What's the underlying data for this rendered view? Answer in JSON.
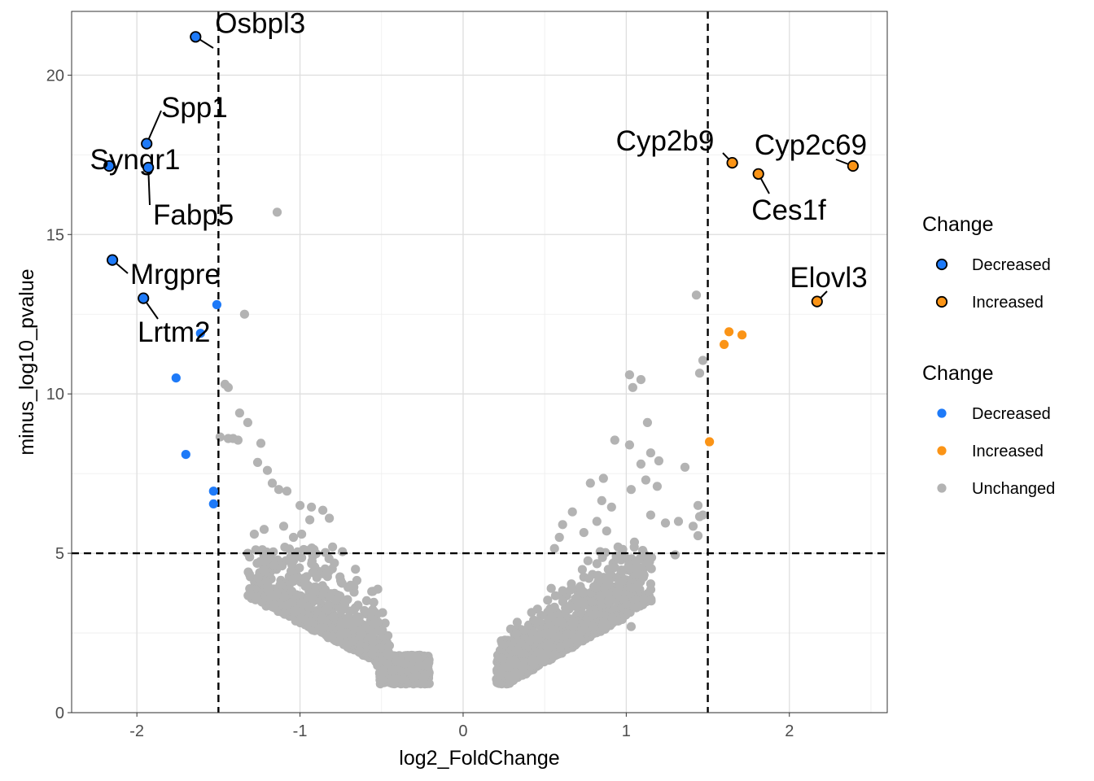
{
  "chart_data": {
    "type": "scatter",
    "title": "",
    "xlabel": "log2_FoldChange",
    "ylabel": "minus_log10_pvalue",
    "xlim": [
      -2.4,
      2.6
    ],
    "ylim": [
      0,
      22
    ],
    "x_ticks": [
      -2,
      -1,
      0,
      1,
      2
    ],
    "x_tick_labels": [
      "-2",
      "-1",
      "0",
      "1",
      "2"
    ],
    "y_ticks": [
      0,
      5,
      10,
      15,
      20
    ],
    "y_tick_labels": [
      "0",
      "5",
      "10",
      "15",
      "20"
    ],
    "grid": true,
    "thresholds": {
      "x": [
        -1.5,
        1.5
      ],
      "y": 5
    },
    "colors": {
      "Decreased": "#1e7af8",
      "Increased": "#fb9416",
      "Unchanged": "#b3b3b3"
    },
    "legend_placement": "right",
    "legends": [
      {
        "title": "Change",
        "style": "outlined",
        "entries": [
          "Decreased",
          "Increased"
        ]
      },
      {
        "title": "Change",
        "style": "filled",
        "entries": [
          "Decreased",
          "Increased",
          "Unchanged"
        ]
      }
    ],
    "series": [
      {
        "name": "Decreased",
        "x": [
          -1.51,
          -1.61,
          -1.76,
          -1.7,
          -1.53,
          -1.53
        ],
        "y": [
          12.8,
          11.9,
          10.5,
          8.1,
          6.95,
          6.55
        ]
      },
      {
        "name": "Increased",
        "x": [
          1.63,
          1.71,
          1.6,
          1.51
        ],
        "y": [
          11.95,
          11.85,
          11.55,
          8.5
        ]
      },
      {
        "name": "Unchanged",
        "x": [
          -1.14,
          -1.34,
          -1.46,
          -1.44,
          -1.37,
          -1.32,
          -1.49,
          -1.38,
          -1.24,
          -1.44,
          -1.41,
          -1.26,
          -1.2,
          -1.17,
          -1.13,
          -1.08,
          -1.0,
          -0.93,
          -0.86,
          -0.82,
          -0.94,
          -1.1,
          -1.22,
          -1.28,
          -0.8,
          -1.32,
          -1.04,
          -0.99,
          -0.74,
          -0.66,
          -0.69,
          -0.56,
          1.43,
          1.47,
          1.45,
          1.45,
          1.44,
          1.02,
          1.04,
          1.09,
          1.02,
          0.93,
          0.86,
          1.13,
          1.15,
          1.2,
          1.09,
          1.12,
          1.36,
          1.19,
          1.44,
          1.03,
          1.15,
          1.47,
          0.78,
          0.85,
          0.91,
          0.82,
          0.67,
          0.61,
          0.59,
          0.84,
          0.74,
          0.56,
          1.32,
          1.24,
          1.41,
          1.3,
          1.05,
          0.95,
          0.88,
          1.04,
          1.03
        ],
        "y": [
          15.7,
          12.5,
          10.3,
          10.2,
          9.4,
          9.1,
          8.65,
          8.55,
          8.45,
          8.6,
          8.6,
          7.85,
          7.6,
          7.2,
          7.0,
          6.95,
          6.5,
          6.45,
          6.35,
          6.1,
          6.05,
          5.85,
          5.75,
          5.6,
          5.2,
          5.0,
          5.5,
          5.6,
          5.05,
          4.5,
          4.0,
          3.8,
          13.1,
          11.05,
          10.65,
          6.15,
          5.55,
          10.6,
          10.2,
          10.45,
          8.4,
          8.55,
          7.35,
          9.1,
          8.15,
          7.9,
          7.8,
          7.3,
          7.7,
          7.1,
          6.5,
          7.0,
          6.2,
          6.2,
          7.2,
          6.65,
          6.45,
          6.0,
          6.3,
          5.9,
          5.5,
          5.05,
          5.65,
          5.15,
          6.0,
          5.95,
          5.85,
          4.95,
          5.35,
          5.2,
          5.7,
          3.9,
          2.7
        ]
      }
    ],
    "unchanged_cloud": "dense cloud of ~3000 Unchanged points with |log2_FoldChange| roughly 0.2 to 1.5 and minus_log10_pvalue roughly 0.9 to 5",
    "annotations": [
      {
        "label": "Osbpl3",
        "x": -1.64,
        "y": 21.2,
        "group": "Decreased"
      },
      {
        "label": "Spp1",
        "x": -1.94,
        "y": 17.85,
        "group": "Decreased"
      },
      {
        "label": "Syngr1",
        "x": -2.17,
        "y": 17.15,
        "group": "Decreased"
      },
      {
        "label": "Fabp5",
        "x": -1.93,
        "y": 17.1,
        "group": "Decreased"
      },
      {
        "label": "Mrgpre",
        "x": -2.15,
        "y": 14.2,
        "group": "Decreased"
      },
      {
        "label": "Lrtm2",
        "x": -1.96,
        "y": 13.0,
        "group": "Decreased"
      },
      {
        "label": "Cyp2b9",
        "x": 1.65,
        "y": 17.25,
        "group": "Increased"
      },
      {
        "label": "Cyp2c69",
        "x": 2.39,
        "y": 17.15,
        "group": "Increased"
      },
      {
        "label": "Ces1f",
        "x": 1.81,
        "y": 16.9,
        "group": "Increased"
      },
      {
        "label": "Elovl3",
        "x": 2.17,
        "y": 12.9,
        "group": "Increased"
      }
    ]
  }
}
